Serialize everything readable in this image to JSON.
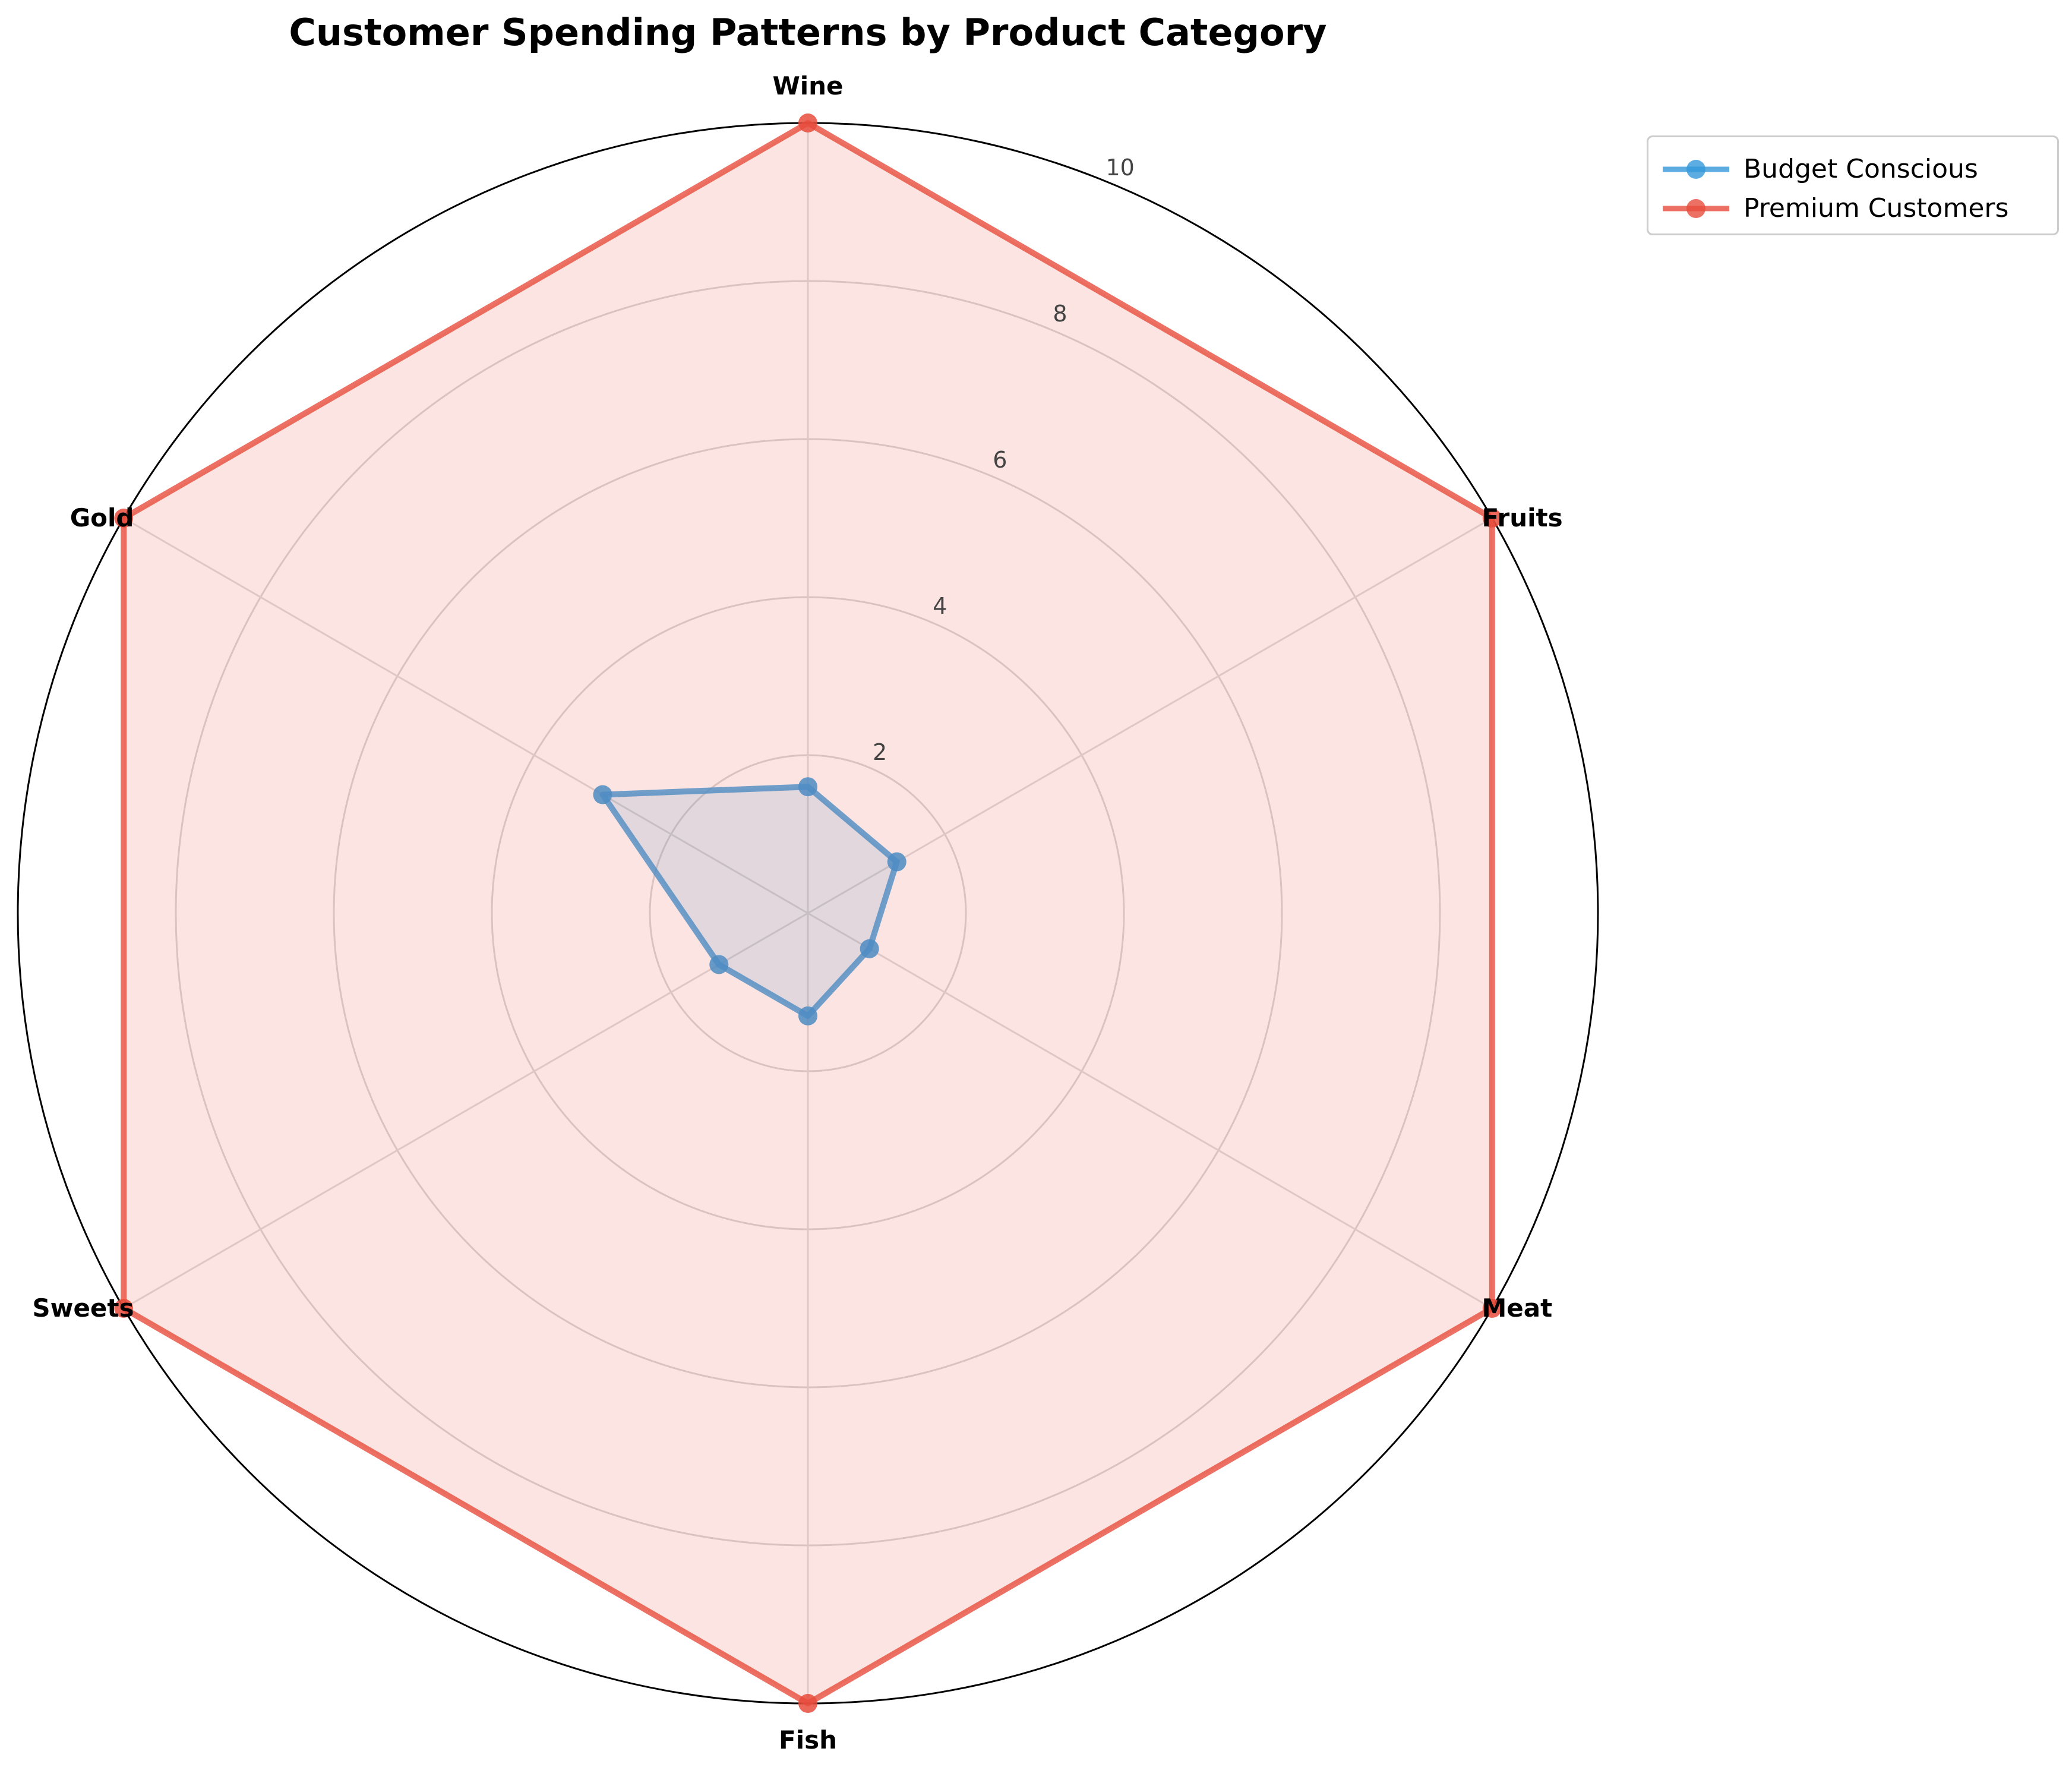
{
  "chart_data": {
    "type": "radar",
    "title": "Customer Spending Patterns by Product Category",
    "categories": [
      "Wine",
      "Fruits",
      "Meat",
      "Fish",
      "Sweets",
      "Gold"
    ],
    "rlim": [
      0,
      10
    ],
    "rticks": [
      "2",
      "4",
      "6",
      "8",
      "10"
    ],
    "grid": true,
    "legend_position": "upper right, outside plot",
    "series": [
      {
        "name": "Budget Conscious",
        "color": "#3498db",
        "values": [
          1.6,
          1.3,
          0.9,
          1.3,
          1.3,
          3.0
        ]
      },
      {
        "name": "Premium Customers",
        "color": "#e74c3c",
        "values": [
          10,
          10,
          10,
          10,
          10,
          10
        ]
      }
    ]
  }
}
